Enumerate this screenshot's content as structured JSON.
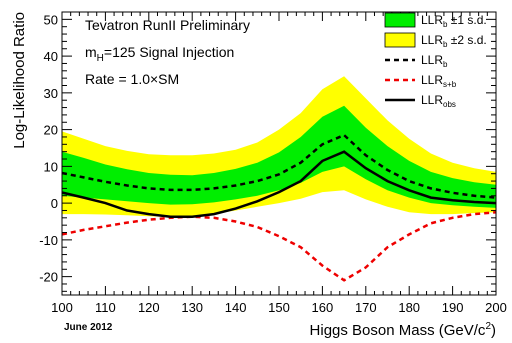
{
  "chart_data": {
    "type": "line",
    "xlabel": "Higgs Boson Mass (GeV/c",
    "xlabel_sup": "2",
    "xlabel_end": ")",
    "ylabel": "Log-Likelihood Ratio",
    "xlim": [
      100,
      200
    ],
    "ylim": [
      -25,
      52
    ],
    "x_ticks": [
      100,
      110,
      120,
      130,
      140,
      150,
      160,
      170,
      180,
      190,
      200
    ],
    "y_ticks": [
      -20,
      -10,
      0,
      10,
      20,
      30,
      40,
      50
    ],
    "annotations": {
      "line1": "Tevatron RunII Preliminary",
      "line2_main": "m",
      "line2_sub": "H",
      "line2_rest": "=125 Signal Injection",
      "line3": "Rate = 1.0×SM",
      "date": "June 2012"
    },
    "colors": {
      "band1": "#00ee00",
      "band2": "#ffff00",
      "llr_b": "#000000",
      "llr_sb": "#ee0000",
      "llr_obs": "#000000"
    },
    "legend": {
      "placement": "top-right",
      "entries": [
        {
          "key": "band1",
          "main": "LLR",
          "sub": "b",
          "suffix": " ±1 s.d."
        },
        {
          "key": "band2",
          "main": "LLR",
          "sub": "b",
          "suffix": " ±2 s.d."
        },
        {
          "key": "llr_b",
          "main": "LLR",
          "sub": "b",
          "suffix": ""
        },
        {
          "key": "llr_sb",
          "main": "LLR",
          "sub": "s+b",
          "suffix": ""
        },
        {
          "key": "llr_obs",
          "main": "LLR",
          "sub": "obs",
          "suffix": ""
        }
      ]
    },
    "x": [
      100,
      105,
      110,
      115,
      120,
      125,
      130,
      135,
      140,
      145,
      150,
      155,
      160,
      165,
      170,
      175,
      180,
      185,
      190,
      195,
      200
    ],
    "series": {
      "llr_b": [
        8.2,
        7.0,
        5.8,
        4.8,
        4.0,
        3.6,
        3.6,
        4.0,
        4.8,
        6.0,
        7.8,
        11.0,
        16.0,
        18.5,
        13.0,
        9.0,
        6.0,
        4.0,
        2.8,
        2.0,
        1.5
      ],
      "band1_upper": [
        14.0,
        12.3,
        10.5,
        9.2,
        8.2,
        7.7,
        7.6,
        8.2,
        9.3,
        11.0,
        13.8,
        18.0,
        23.5,
        26.5,
        20.5,
        15.5,
        11.5,
        8.5,
        6.8,
        5.7,
        5.0
      ],
      "band1_lower": [
        2.0,
        1.5,
        1.0,
        0.5,
        0.0,
        -0.4,
        -0.3,
        0.2,
        1.0,
        2.0,
        3.5,
        5.5,
        8.5,
        10.0,
        6.5,
        3.5,
        1.5,
        0.0,
        -0.6,
        -1.0,
        -1.3
      ],
      "band2_upper": [
        19.5,
        17.5,
        15.5,
        14.2,
        13.3,
        13.0,
        13.0,
        13.5,
        14.5,
        16.5,
        20.0,
        24.5,
        31.0,
        34.5,
        28.5,
        22.5,
        17.5,
        13.5,
        11.0,
        9.5,
        8.5
      ],
      "band2_lower": [
        -3.0,
        -3.0,
        -3.1,
        -3.3,
        -3.6,
        -3.8,
        -3.6,
        -3.0,
        -2.0,
        -1.0,
        0.0,
        1.2,
        3.0,
        3.5,
        1.0,
        -1.0,
        -2.5,
        -3.0,
        -3.0,
        -2.7,
        -2.5
      ],
      "llr_sb": [
        -8.5,
        -7.3,
        -6.3,
        -5.3,
        -4.5,
        -4.0,
        -3.7,
        -4.0,
        -5.0,
        -6.5,
        -9.0,
        -12.0,
        -17.0,
        -21.0,
        -17.5,
        -12.0,
        -8.5,
        -5.5,
        -4.0,
        -3.0,
        -2.5
      ],
      "llr_obs": [
        2.9,
        1.5,
        0.0,
        -2.0,
        -3.0,
        -3.7,
        -3.7,
        -3.0,
        -1.5,
        0.5,
        3.0,
        6.0,
        11.5,
        14.0,
        9.5,
        6.0,
        3.5,
        1.5,
        0.8,
        0.3,
        0.0
      ]
    }
  }
}
